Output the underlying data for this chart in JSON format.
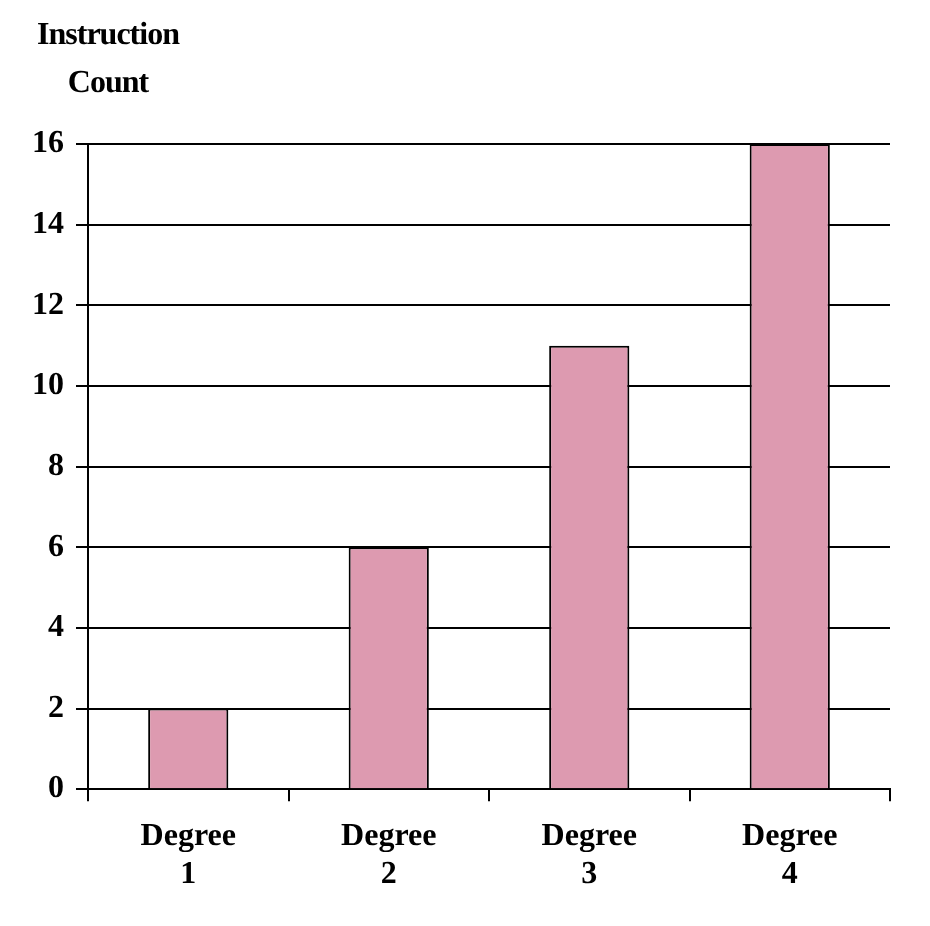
{
  "chart_data": {
    "type": "bar",
    "ylabel": "Instruction Count",
    "categories": [
      "Degree 1",
      "Degree 2",
      "Degree 3",
      "Degree 4"
    ],
    "values": [
      2,
      6,
      11,
      16
    ],
    "color": "#dd9ab0",
    "ylim": [
      0,
      16
    ],
    "yticks": [
      0,
      2,
      4,
      6,
      8,
      10,
      12,
      14,
      16
    ],
    "grid": "y",
    "legend": false
  }
}
